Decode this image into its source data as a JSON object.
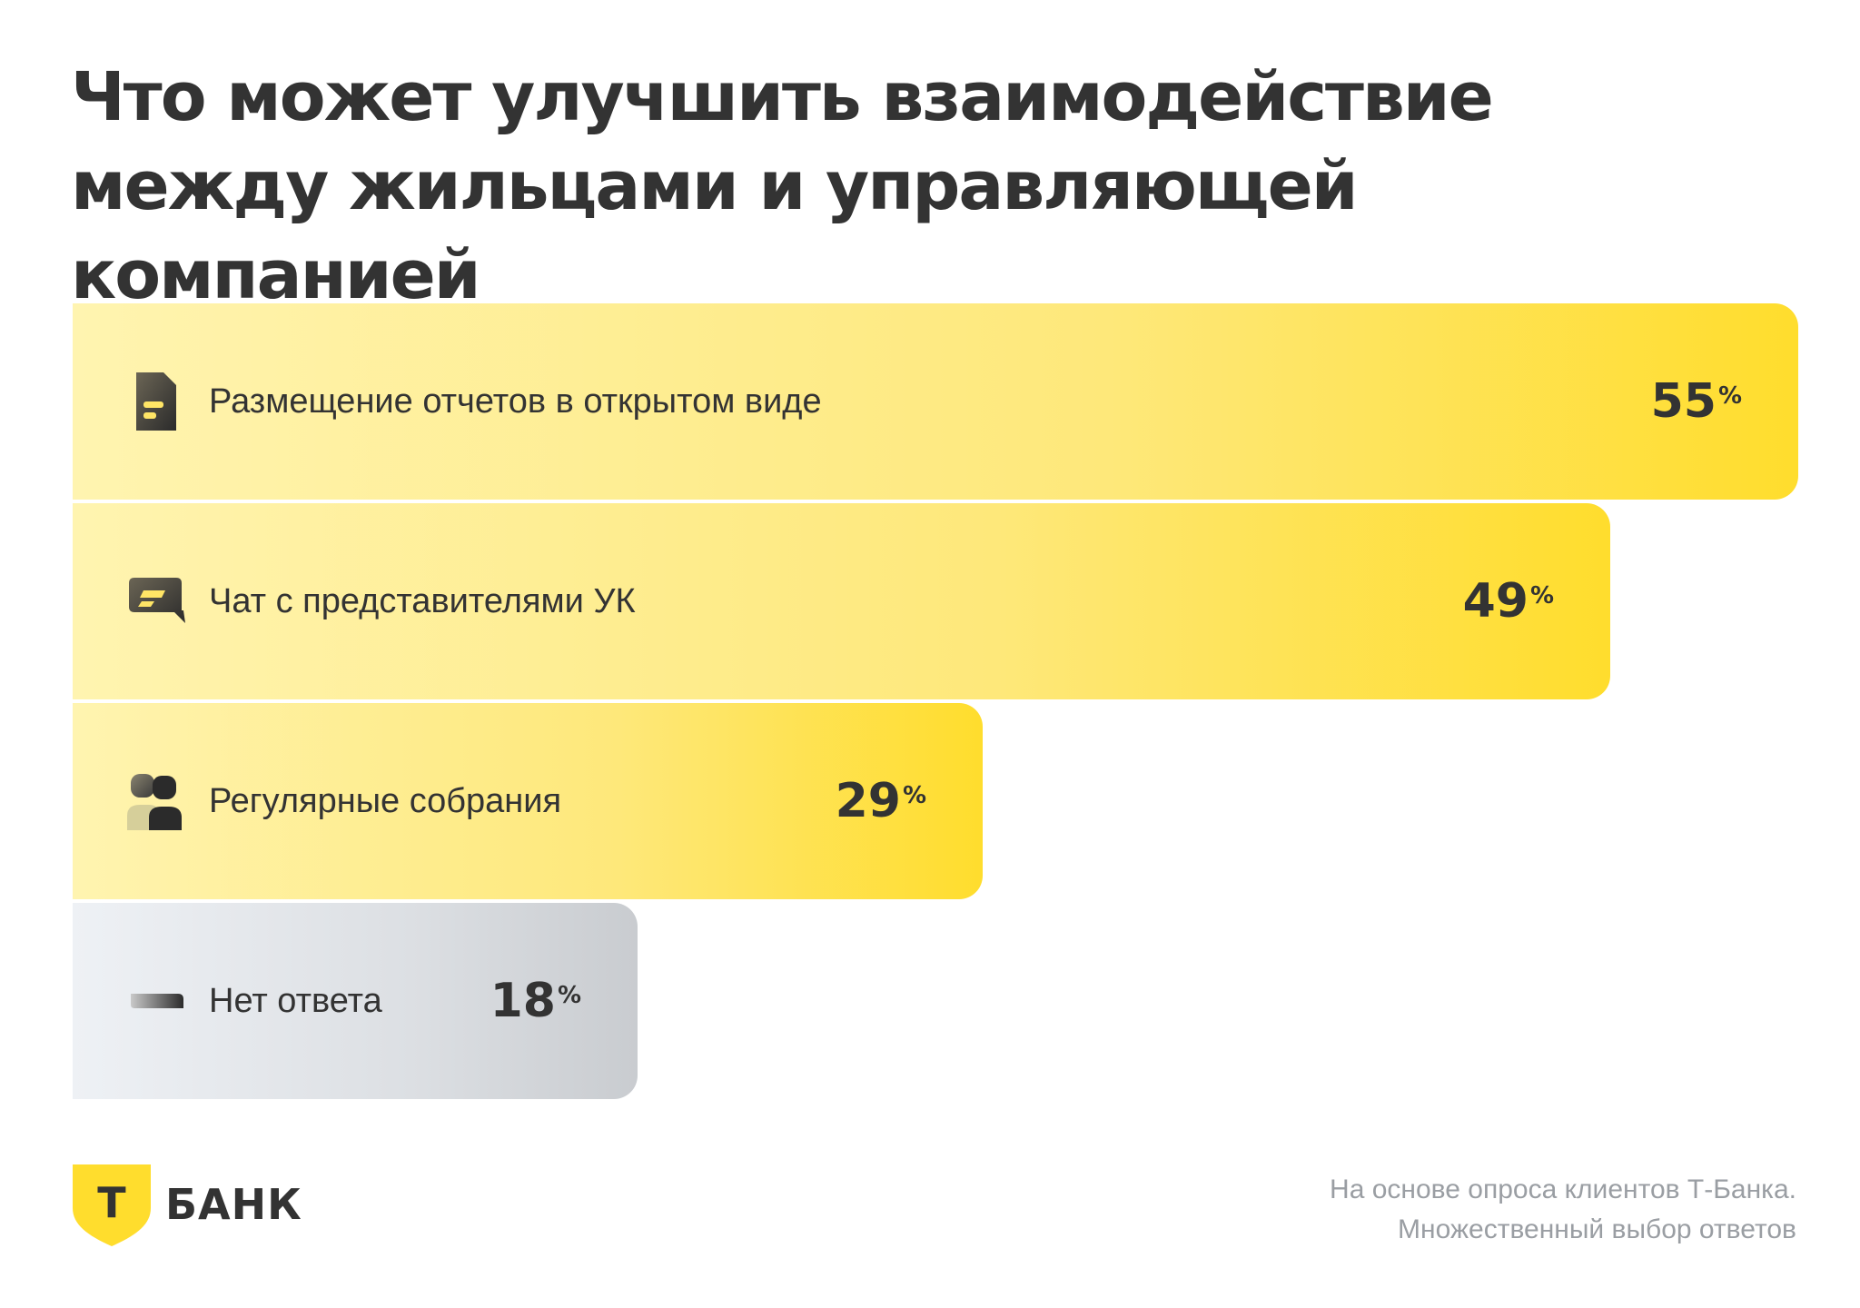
{
  "title": "Что может улучшить взаимодействие между жильцами и управляющей компанией",
  "chart_data": {
    "type": "bar",
    "orientation": "horizontal",
    "categories": [
      "Размещение отчетов в открытом виде",
      "Чат с представителями УК",
      "Регулярные собрания",
      "Нет ответа"
    ],
    "values": [
      55,
      49,
      29,
      18
    ],
    "value_suffix": "%",
    "icons": [
      "document-icon",
      "chat-icon",
      "people-icon",
      "dash-icon"
    ],
    "bar_colors": [
      "#ffdd2d",
      "#ffdd2d",
      "#ffdd2d",
      "#c9ccd0"
    ],
    "xlim": [
      0,
      55
    ],
    "grid": false,
    "legend": "none"
  },
  "logo": {
    "text": "БАНК",
    "letter": "Т",
    "color": "#ffdd2d"
  },
  "footnote": {
    "line1": "На основе опроса клиентов Т-Банка.",
    "line2": "Множественный выбор ответов"
  }
}
